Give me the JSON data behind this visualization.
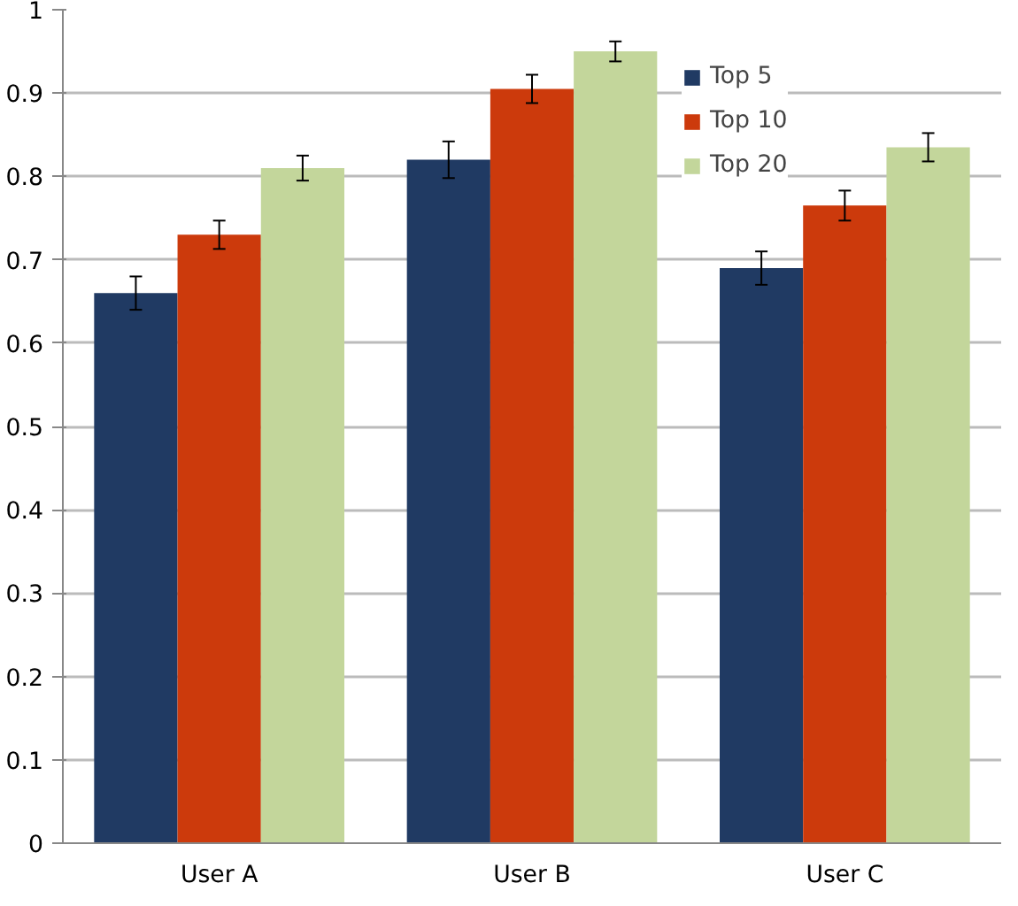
{
  "chart_data": {
    "type": "bar",
    "categories": [
      "User A",
      "User B",
      "User C"
    ],
    "series": [
      {
        "name": "Top 5",
        "color": "#203a63",
        "values": [
          0.66,
          0.82,
          0.69
        ],
        "errors": [
          0.02,
          0.022,
          0.02
        ]
      },
      {
        "name": "Top 10",
        "color": "#cc3a0c",
        "values": [
          0.73,
          0.905,
          0.765
        ],
        "errors": [
          0.017,
          0.017,
          0.018
        ]
      },
      {
        "name": "Top 20",
        "color": "#c3d69b",
        "values": [
          0.81,
          0.95,
          0.835
        ],
        "errors": [
          0.015,
          0.012,
          0.017
        ]
      }
    ],
    "ylim": [
      0,
      1
    ],
    "yticks": [
      0,
      0.1,
      0.2,
      0.3,
      0.4,
      0.5,
      0.6,
      0.7,
      0.8,
      0.9,
      1
    ],
    "grid": "y",
    "legend": "top right"
  }
}
